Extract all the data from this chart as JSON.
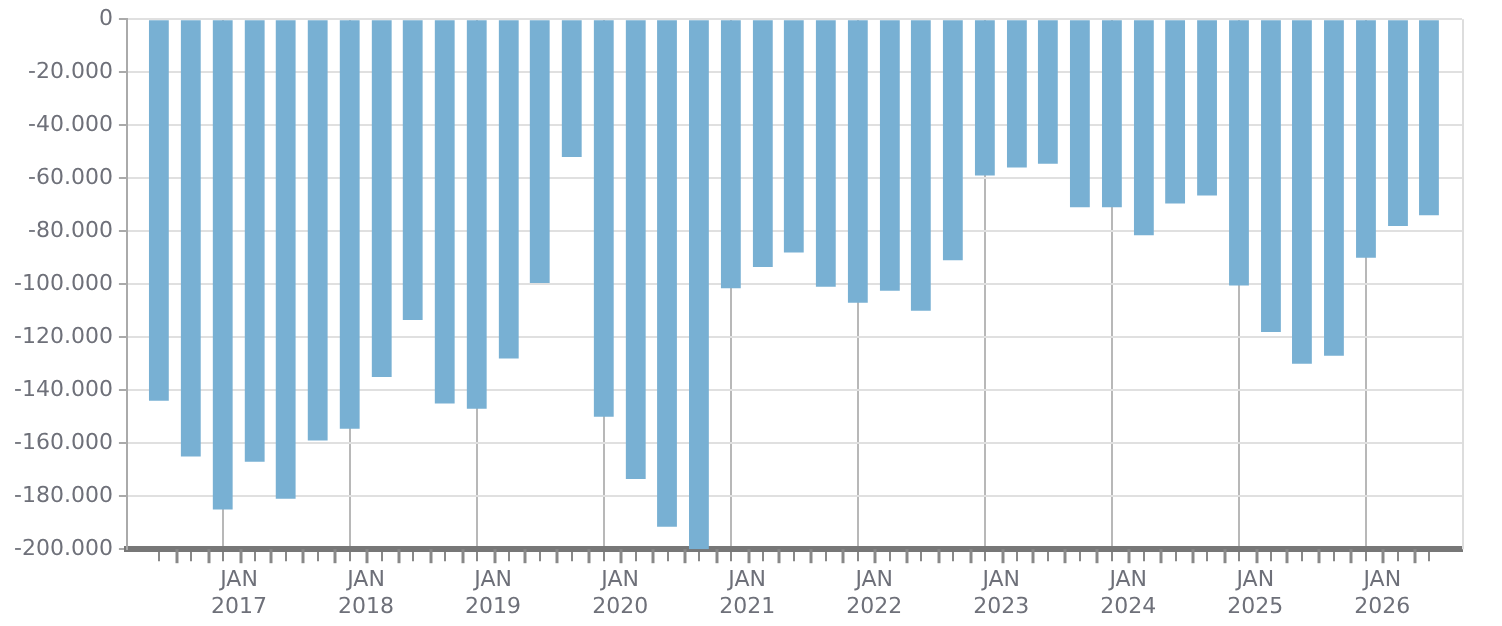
{
  "chart_data": {
    "type": "bar",
    "color": "#78b0d3",
    "x": [
      "2016-05-15",
      "2016-08-15",
      "2016-11-15",
      "2017-02-15",
      "2017-05-15",
      "2017-08-15",
      "2017-11-15",
      "2018-02-15",
      "2018-05-15",
      "2018-08-15",
      "2018-11-15",
      "2019-02-15",
      "2019-05-15",
      "2019-08-15",
      "2019-11-15",
      "2020-02-15",
      "2020-05-15",
      "2020-08-15",
      "2020-11-15",
      "2021-02-15",
      "2021-05-15",
      "2021-08-15",
      "2021-11-15",
      "2022-02-15",
      "2022-05-15",
      "2022-08-15",
      "2022-11-15",
      "2023-02-15",
      "2023-05-15",
      "2023-08-15",
      "2023-11-15",
      "2024-02-15",
      "2024-05-15",
      "2024-08-15",
      "2024-11-15",
      "2025-02-15",
      "2025-05-15",
      "2025-08-15",
      "2025-11-15",
      "2026-02-15",
      "2026-05-15"
    ],
    "values": [
      -144000,
      -165000,
      -185000,
      -167000,
      -181000,
      -159000,
      -154500,
      -135000,
      -113500,
      -145000,
      -147000,
      -128000,
      -99500,
      -52000,
      -150000,
      -173500,
      -191500,
      -200000,
      -101500,
      -93500,
      -88000,
      -101000,
      -107000,
      -102500,
      -110000,
      -91000,
      -59000,
      -56000,
      -54500,
      -71000,
      -71000,
      -81500,
      -69500,
      -66500,
      -100500,
      -118000,
      -130000,
      -127000,
      -90000,
      -78000,
      -74000
    ],
    "xlim": [
      "2016-04-01",
      "2026-07-01"
    ],
    "xticks": [
      {
        "value": "2016-07-01",
        "label": null
      },
      {
        "value": "2016-10-01",
        "label": null
      },
      {
        "value": "2017-01-01",
        "label": "JAN 2017"
      },
      {
        "value": "2017-04-01",
        "label": null
      },
      {
        "value": "2017-07-01",
        "label": null
      },
      {
        "value": "2017-10-01",
        "label": null
      },
      {
        "value": "2018-01-01",
        "label": "JAN 2018"
      },
      {
        "value": "2018-04-01",
        "label": null
      },
      {
        "value": "2018-07-01",
        "label": null
      },
      {
        "value": "2018-10-01",
        "label": null
      },
      {
        "value": "2019-01-01",
        "label": "JAN 2019"
      },
      {
        "value": "2019-04-01",
        "label": null
      },
      {
        "value": "2019-07-01",
        "label": null
      },
      {
        "value": "2019-10-01",
        "label": null
      },
      {
        "value": "2020-01-01",
        "label": "JAN 2020"
      },
      {
        "value": "2020-04-01",
        "label": null
      },
      {
        "value": "2020-07-01",
        "label": null
      },
      {
        "value": "2020-10-01",
        "label": null
      },
      {
        "value": "2021-01-01",
        "label": "JAN 2021"
      },
      {
        "value": "2021-04-01",
        "label": null
      },
      {
        "value": "2021-07-01",
        "label": null
      },
      {
        "value": "2021-10-01",
        "label": null
      },
      {
        "value": "2022-01-01",
        "label": "JAN 2022"
      },
      {
        "value": "2022-04-01",
        "label": null
      },
      {
        "value": "2022-07-01",
        "label": null
      },
      {
        "value": "2022-10-01",
        "label": null
      },
      {
        "value": "2023-01-01",
        "label": "JAN 2023"
      },
      {
        "value": "2023-04-01",
        "label": null
      },
      {
        "value": "2023-07-01",
        "label": null
      },
      {
        "value": "2023-10-01",
        "label": null
      },
      {
        "value": "2024-01-01",
        "label": "JAN 2024"
      },
      {
        "value": "2024-04-01",
        "label": null
      },
      {
        "value": "2024-07-01",
        "label": null
      },
      {
        "value": "2024-10-01",
        "label": null
      },
      {
        "value": "2025-01-01",
        "label": "JAN 2025"
      },
      {
        "value": "2025-04-01",
        "label": null
      },
      {
        "value": "2025-07-01",
        "label": null
      },
      {
        "value": "2025-10-01",
        "label": null
      },
      {
        "value": "2026-01-01",
        "label": "JAN 2026"
      },
      {
        "value": "2026-04-01",
        "label": null
      }
    ],
    "ylim": [
      -200000,
      0
    ],
    "yticks": [
      {
        "value": -200000,
        "label": "-200.000"
      },
      {
        "value": -180000,
        "label": "-180.000"
      },
      {
        "value": -160000,
        "label": "-160.000"
      },
      {
        "value": -140000,
        "label": "-140.000"
      },
      {
        "value": -120000,
        "label": "-120.000"
      },
      {
        "value": -100000,
        "label": "-100.000"
      },
      {
        "value": -80000,
        "label": "-80.000"
      },
      {
        "value": -60000,
        "label": "-60.000"
      },
      {
        "value": -40000,
        "label": "-40.000"
      },
      {
        "value": -20000,
        "label": "-20.000"
      },
      0
    ],
    "grid": true,
    "legend": false
  }
}
